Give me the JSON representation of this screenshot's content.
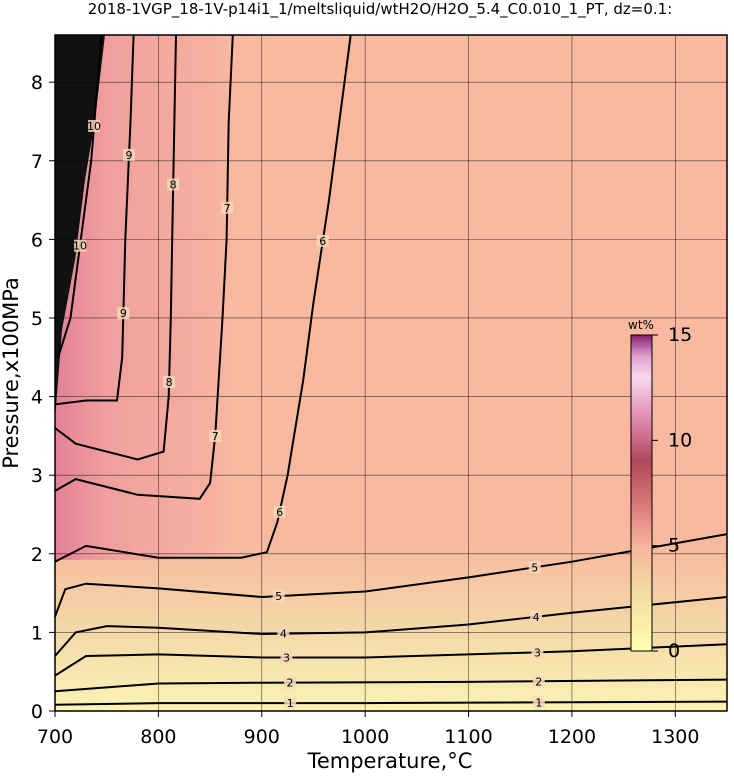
{
  "chart_data": {
    "type": "contour",
    "title": "2018-1VGP_18-1V-p14i1_1/meltsliquid/wtH2O/H2O_5.4_C0.010_1_PT, dz=0.1:",
    "x_label": "Temperature,°C",
    "y_label": "Pressure,x100MPa",
    "xlim": [
      700,
      1350
    ],
    "ylim": [
      0,
      8.6
    ],
    "xticks": [
      700,
      800,
      900,
      1000,
      1100,
      1200,
      1300
    ],
    "yticks": [
      0,
      1,
      2,
      3,
      4,
      5,
      6,
      7,
      8
    ],
    "grid": true,
    "contours": [
      {
        "level": 1,
        "x": [
          700,
          800,
          1000,
          1350
        ],
        "y": [
          0.08,
          0.1,
          0.1,
          0.12
        ]
      },
      {
        "level": 2,
        "x": [
          700,
          750,
          800,
          900,
          1100,
          1350
        ],
        "y": [
          0.25,
          0.3,
          0.35,
          0.36,
          0.37,
          0.4
        ]
      },
      {
        "level": 3,
        "x": [
          700,
          730,
          800,
          900,
          1000,
          1100,
          1200,
          1350
        ],
        "y": [
          0.45,
          0.7,
          0.72,
          0.68,
          0.68,
          0.72,
          0.76,
          0.85
        ]
      },
      {
        "level": 4,
        "x": [
          700,
          720,
          750,
          800,
          900,
          1000,
          1100,
          1200,
          1350
        ],
        "y": [
          0.7,
          1.0,
          1.08,
          1.06,
          0.98,
          1.0,
          1.1,
          1.25,
          1.45
        ]
      },
      {
        "level": 5,
        "x": [
          700,
          710,
          730,
          800,
          900,
          1000,
          1100,
          1200,
          1350
        ],
        "y": [
          1.2,
          1.55,
          1.62,
          1.56,
          1.45,
          1.52,
          1.7,
          1.9,
          2.25
        ]
      },
      {
        "level": 6,
        "x": [
          700,
          730,
          800,
          880,
          905,
          915,
          925,
          940,
          950,
          965,
          986
        ],
        "y": [
          1.9,
          2.1,
          1.95,
          1.95,
          2.02,
          2.4,
          3.0,
          4.2,
          5.2,
          6.5,
          8.6
        ]
      },
      {
        "level": 7,
        "x": [
          700,
          720,
          780,
          840,
          850,
          855,
          862,
          866,
          868,
          872
        ],
        "y": [
          2.8,
          2.95,
          2.75,
          2.7,
          2.9,
          3.5,
          5.0,
          6.0,
          7.5,
          8.6
        ]
      },
      {
        "level": 8,
        "x": [
          700,
          720,
          780,
          805,
          810,
          812,
          814,
          817
        ],
        "y": [
          3.6,
          3.4,
          3.2,
          3.3,
          4.0,
          5.0,
          6.5,
          8.6
        ]
      },
      {
        "level": 9,
        "x": [
          700,
          730,
          760,
          765,
          768,
          773,
          776
        ],
        "y": [
          3.9,
          3.95,
          3.95,
          4.5,
          6.0,
          7.5,
          8.6
        ]
      },
      {
        "level": 10,
        "x": [
          703,
          715,
          725,
          735,
          745
        ],
        "y": [
          4.5,
          5.0,
          6.0,
          7.0,
          8.6
        ]
      }
    ],
    "colorbar_label": "wt%",
    "clim": [
      0,
      15
    ],
    "cticks": [
      0,
      5,
      10,
      15
    ],
    "colormap": [
      {
        "value": 0,
        "color": "#ffffb0"
      },
      {
        "value": 3,
        "color": "#f2d8a0"
      },
      {
        "value": 5,
        "color": "#f6b49c"
      },
      {
        "value": 7,
        "color": "#d77878"
      },
      {
        "value": 9,
        "color": "#b04858"
      },
      {
        "value": 11,
        "color": "#e08ab0"
      },
      {
        "value": 13,
        "color": "#f8d8ec"
      },
      {
        "value": 14,
        "color": "#e0a0d0"
      },
      {
        "value": 15,
        "color": "#802070"
      }
    ]
  }
}
